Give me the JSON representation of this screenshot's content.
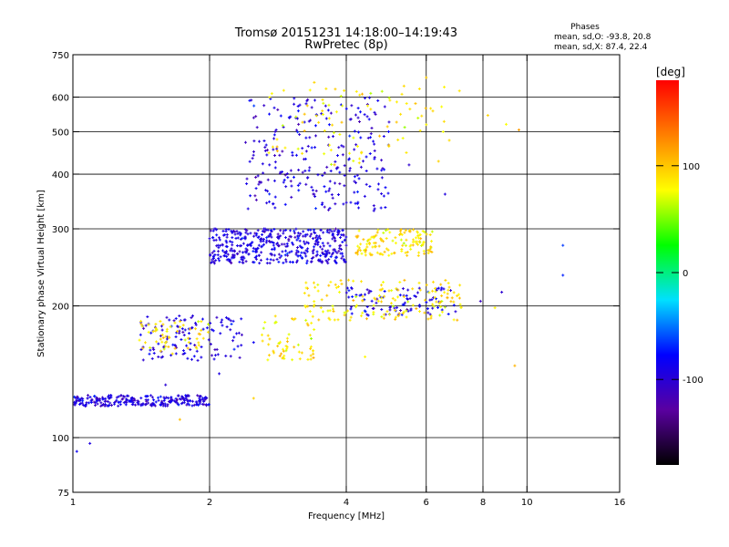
{
  "chart_data": {
    "type": "scatter",
    "title": "Tromsø 20151231 14:18:00–14:19:43",
    "subtitle": "RwPretec (8p)",
    "xlabel": "Frequency [MHz]",
    "ylabel": "Stationary phase Virtual Height [km]",
    "x_scale": "log",
    "y_scale": "log",
    "xlim": [
      1,
      16
    ],
    "ylim": [
      75,
      750
    ],
    "x_ticks": [
      1,
      2,
      4,
      6,
      8,
      10,
      16
    ],
    "y_ticks": [
      75,
      100,
      200,
      300,
      400,
      500,
      600,
      750
    ],
    "x_gridlines": [
      2,
      4,
      6,
      8,
      10
    ],
    "y_gridlines": [
      100,
      200,
      300,
      400,
      500,
      600
    ],
    "grid": true,
    "stats": {
      "header": "Phases",
      "line1": "mean, sd,O: -93.8, 20.8",
      "line2": "mean, sd,X:  87.4, 22.4"
    },
    "colorbar": {
      "label": "[deg]",
      "range": [
        -180,
        180
      ],
      "ticks": [
        -100,
        0,
        100
      ],
      "tick_labels": [
        "-100",
        "0",
        "100"
      ],
      "colormap": [
        "#000000",
        "#5a00a0",
        "#0000ff",
        "#00e0ff",
        "#00ff00",
        "#ffff00",
        "#ff8000",
        "#ff0000"
      ]
    },
    "series": [
      {
        "name": "O",
        "color_phase_mean": -93.8,
        "clusters": [
          {
            "f": [
              1.0,
              2.0
            ],
            "h": [
              118,
              125
            ],
            "n": 260
          },
          {
            "f": [
              1.4,
              2.4
            ],
            "h": [
              150,
              190
            ],
            "n": 120
          },
          {
            "f": [
              2.0,
              4.0
            ],
            "h": [
              250,
              300
            ],
            "n": 420
          },
          {
            "f": [
              2.4,
              5.0
            ],
            "h": [
              330,
              600
            ],
            "n": 260
          },
          {
            "f": [
              4.0,
              7.0
            ],
            "h": [
              190,
              220
            ],
            "n": 90
          }
        ],
        "points": [
          {
            "f": 1.02,
            "h": 93
          },
          {
            "f": 1.09,
            "h": 97
          },
          {
            "f": 1.3,
            "h": 124
          },
          {
            "f": 1.6,
            "h": 132
          },
          {
            "f": 2.1,
            "h": 140
          },
          {
            "f": 2.5,
            "h": 165
          },
          {
            "f": 2.0,
            "h": 285
          },
          {
            "f": 2.6,
            "h": 285
          },
          {
            "f": 3.0,
            "h": 265
          },
          {
            "f": 3.5,
            "h": 255
          },
          {
            "f": 4.0,
            "h": 275
          },
          {
            "f": 4.6,
            "h": 330
          },
          {
            "f": 5.5,
            "h": 420
          },
          {
            "f": 6.6,
            "h": 360
          },
          {
            "f": 12.0,
            "h": 275
          },
          {
            "f": 12.0,
            "h": 235
          },
          {
            "f": 7.9,
            "h": 205
          },
          {
            "f": 8.8,
            "h": 215
          }
        ]
      },
      {
        "name": "X",
        "color_phase_mean": 87.4,
        "clusters": [
          {
            "f": [
              1.4,
              2.0
            ],
            "h": [
              155,
              185
            ],
            "n": 60
          },
          {
            "f": [
              2.6,
              3.4
            ],
            "h": [
              150,
              190
            ],
            "n": 60
          },
          {
            "f": [
              4.2,
              6.2
            ],
            "h": [
              260,
              300
            ],
            "n": 130
          },
          {
            "f": [
              3.2,
              7.2
            ],
            "h": [
              185,
              230
            ],
            "n": 150
          },
          {
            "f": [
              2.7,
              6.8
            ],
            "h": [
              420,
              650
            ],
            "n": 90
          }
        ],
        "points": [
          {
            "f": 6.0,
            "h": 665
          },
          {
            "f": 7.1,
            "h": 620
          },
          {
            "f": 8.2,
            "h": 545
          },
          {
            "f": 9.6,
            "h": 505
          },
          {
            "f": 9.0,
            "h": 520
          },
          {
            "f": 8.5,
            "h": 198
          },
          {
            "f": 9.4,
            "h": 146
          },
          {
            "f": 1.72,
            "h": 110
          },
          {
            "f": 2.5,
            "h": 123
          },
          {
            "f": 4.4,
            "h": 153
          }
        ]
      }
    ]
  }
}
